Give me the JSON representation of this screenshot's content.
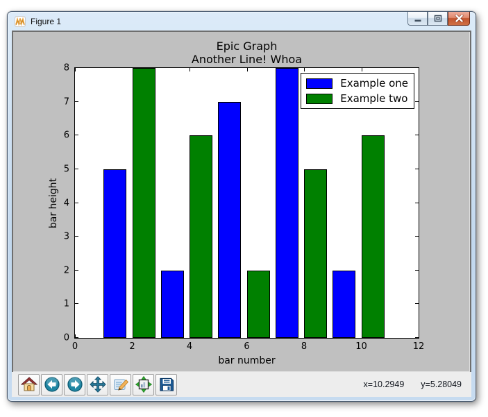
{
  "window": {
    "title": "Figure 1",
    "icon": "matplotlib-logo",
    "controls": [
      {
        "name": "minimize"
      },
      {
        "name": "maximize"
      },
      {
        "name": "close"
      }
    ]
  },
  "chart_data": {
    "type": "bar",
    "title": "Epic Graph",
    "subtitle": "Another Line! Whoa",
    "xlabel": "bar number",
    "ylabel": "bar height",
    "xlim": [
      0,
      12
    ],
    "ylim": [
      0,
      8
    ],
    "xticks": [
      0,
      2,
      4,
      6,
      8,
      10,
      12
    ],
    "yticks": [
      0,
      1,
      2,
      3,
      4,
      5,
      6,
      7,
      8
    ],
    "bar_width": 0.8,
    "bar_align": "edge",
    "grid": false,
    "legend_position": "upper right",
    "plot_bg": "#ffffff",
    "figure_bg": "#c0c0c0",
    "series": [
      {
        "name": "Example one",
        "color": "#0000ff",
        "x": [
          1,
          3,
          5,
          7,
          9
        ],
        "values": [
          5,
          2,
          7,
          8,
          2
        ]
      },
      {
        "name": "Example two",
        "color": "#008000",
        "x": [
          2,
          4,
          6,
          8,
          10
        ],
        "values": [
          8,
          6,
          2,
          5,
          6
        ]
      }
    ]
  },
  "toolbar": {
    "buttons": [
      {
        "name": "home",
        "icon": "home-icon"
      },
      {
        "name": "back",
        "icon": "back-icon"
      },
      {
        "name": "forward",
        "icon": "forward-icon"
      },
      {
        "name": "pan",
        "icon": "pan-icon"
      },
      {
        "name": "zoom-to-rect",
        "icon": "zoom-rect-icon"
      },
      {
        "name": "configure-subplots",
        "icon": "configure-subplots-icon"
      },
      {
        "name": "save",
        "icon": "save-icon"
      }
    ]
  },
  "statusbar": {
    "x_value": "x=10.2949",
    "y_value": "y=5.28049"
  }
}
